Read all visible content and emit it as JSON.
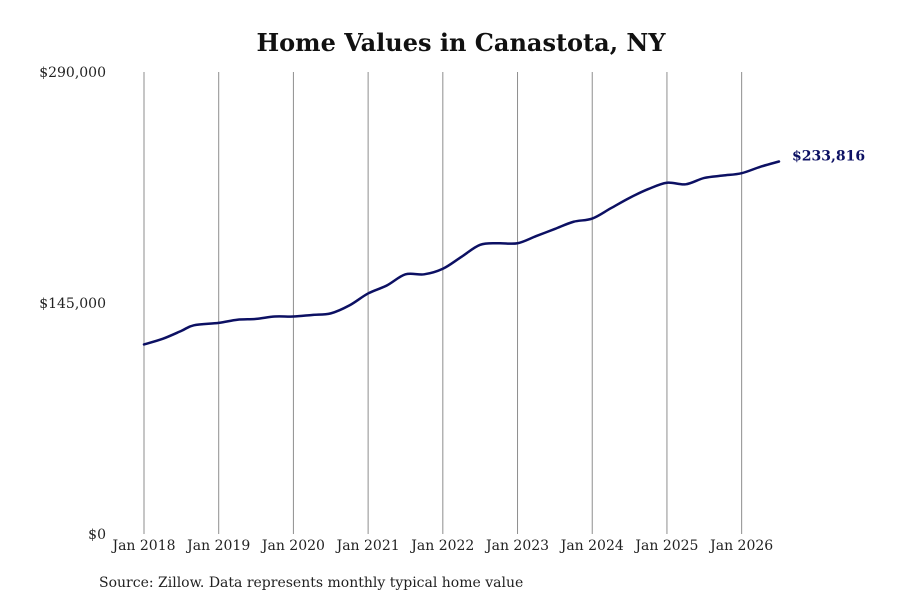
{
  "chart_data": {
    "type": "line",
    "title": "Home Values in Canastota, NY",
    "xlabel": "",
    "ylabel": "",
    "ylim": [
      0,
      290000
    ],
    "xlim": [
      "2018-01",
      "2026-07"
    ],
    "y_ticks": [
      {
        "value": 0,
        "label": "$0"
      },
      {
        "value": 145000,
        "label": "$145,000"
      },
      {
        "value": 290000,
        "label": "$290,000"
      }
    ],
    "x_ticks": [
      {
        "date": "2018-01",
        "label": "Jan 2018"
      },
      {
        "date": "2019-01",
        "label": "Jan 2019"
      },
      {
        "date": "2020-01",
        "label": "Jan 2020"
      },
      {
        "date": "2021-01",
        "label": "Jan 2021"
      },
      {
        "date": "2022-01",
        "label": "Jan 2022"
      },
      {
        "date": "2023-01",
        "label": "Jan 2023"
      },
      {
        "date": "2024-01",
        "label": "Jan 2024"
      },
      {
        "date": "2025-01",
        "label": "Jan 2025"
      },
      {
        "date": "2026-01",
        "label": "Jan 2026"
      }
    ],
    "grid": {
      "vertical": true,
      "horizontal": false
    },
    "legend": "none",
    "line_color": "#0c1063",
    "end_label": "$233,816",
    "series": [
      {
        "points": [
          {
            "x": "2018-01",
            "y": 119000
          },
          {
            "x": "2018-04",
            "y": 122500
          },
          {
            "x": "2018-07",
            "y": 127500
          },
          {
            "x": "2018-09",
            "y": 131000
          },
          {
            "x": "2019-01",
            "y": 132500
          },
          {
            "x": "2019-04",
            "y": 134500
          },
          {
            "x": "2019-07",
            "y": 135000
          },
          {
            "x": "2019-10",
            "y": 136500
          },
          {
            "x": "2020-01",
            "y": 136500
          },
          {
            "x": "2020-04",
            "y": 137500
          },
          {
            "x": "2020-07",
            "y": 138500
          },
          {
            "x": "2020-10",
            "y": 143500
          },
          {
            "x": "2021-01",
            "y": 151000
          },
          {
            "x": "2021-04",
            "y": 156000
          },
          {
            "x": "2021-07",
            "y": 163000
          },
          {
            "x": "2021-10",
            "y": 163000
          },
          {
            "x": "2022-01",
            "y": 166500
          },
          {
            "x": "2022-04",
            "y": 174000
          },
          {
            "x": "2022-07",
            "y": 181500
          },
          {
            "x": "2022-10",
            "y": 182500
          },
          {
            "x": "2023-01",
            "y": 182500
          },
          {
            "x": "2023-04",
            "y": 187000
          },
          {
            "x": "2023-07",
            "y": 191500
          },
          {
            "x": "2023-10",
            "y": 196000
          },
          {
            "x": "2024-01",
            "y": 198000
          },
          {
            "x": "2024-04",
            "y": 204500
          },
          {
            "x": "2024-07",
            "y": 211000
          },
          {
            "x": "2024-10",
            "y": 216500
          },
          {
            "x": "2025-01",
            "y": 220500
          },
          {
            "x": "2025-04",
            "y": 219500
          },
          {
            "x": "2025-07",
            "y": 223500
          },
          {
            "x": "2025-10",
            "y": 225000
          },
          {
            "x": "2026-01",
            "y": 226500
          },
          {
            "x": "2026-04",
            "y": 230500
          },
          {
            "x": "2026-07",
            "y": 233816
          }
        ]
      }
    ]
  },
  "source_note": "Source: Zillow. Data represents monthly typical home value"
}
